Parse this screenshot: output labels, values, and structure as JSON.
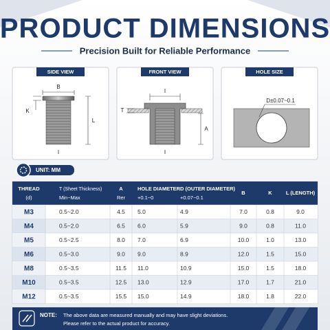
{
  "header": {
    "title": "PRODUCT DIMENSIONS",
    "subtitle": "Precision Built for Reliable Performance"
  },
  "views": [
    {
      "label": "SIDE VIEW",
      "dims": [
        "B",
        "K",
        "L",
        "I"
      ]
    },
    {
      "label": "FRONT VIEW",
      "dims": [
        "I",
        "T",
        "A",
        "I"
      ]
    },
    {
      "label": "HOLE SIZE",
      "dims": [
        "D±0.07~0.1"
      ]
    }
  ],
  "unit": "UNIT: MM",
  "table": {
    "columns": [
      [
        "THREAD",
        "(d)"
      ],
      [
        "T (Sheet Thickness)",
        "Min~Max"
      ],
      [
        "A",
        "Rer"
      ],
      [
        "HOLE DIAMETER",
        "+0.1~0"
      ],
      [
        "D (OUTER DIAMETER)",
        "+0.07~0.1"
      ],
      [
        "B",
        ""
      ],
      [
        "K",
        ""
      ],
      [
        "L (LENGTH)",
        ""
      ]
    ],
    "rows": [
      [
        "M3",
        "0.5~2.0",
        "4.5",
        "5.0",
        "4.9",
        "7.0",
        "0.8",
        "9.0"
      ],
      [
        "M4",
        "0.5~2.0",
        "6.5",
        "6.0",
        "5.9",
        "9.0",
        "0.8",
        "11.0"
      ],
      [
        "M5",
        "0.5~2.5",
        "8.0",
        "7.0",
        "6.9",
        "10.0",
        "1.0",
        "13.0"
      ],
      [
        "M6",
        "0.5~3.0",
        "9.0",
        "9.0",
        "8.9",
        "12.0",
        "1.5",
        "15.0"
      ],
      [
        "M8",
        "0.5~3.5",
        "11.5",
        "11.0",
        "10.9",
        "15.0",
        "1.5",
        "18.0"
      ],
      [
        "M10",
        "0.5~3.5",
        "12.5",
        "13.0",
        "12.9",
        "17.0",
        "1.7",
        "21.0"
      ],
      [
        "M12",
        "0.5~3.5",
        "15.5",
        "15.0",
        "14.9",
        "18.0",
        "1.8",
        "22.0"
      ]
    ]
  },
  "note": {
    "label": "NOTE:",
    "lines": [
      "The above data are measured manually and may have slight deviations.",
      "Please refer to the actual product for accuracy."
    ]
  }
}
